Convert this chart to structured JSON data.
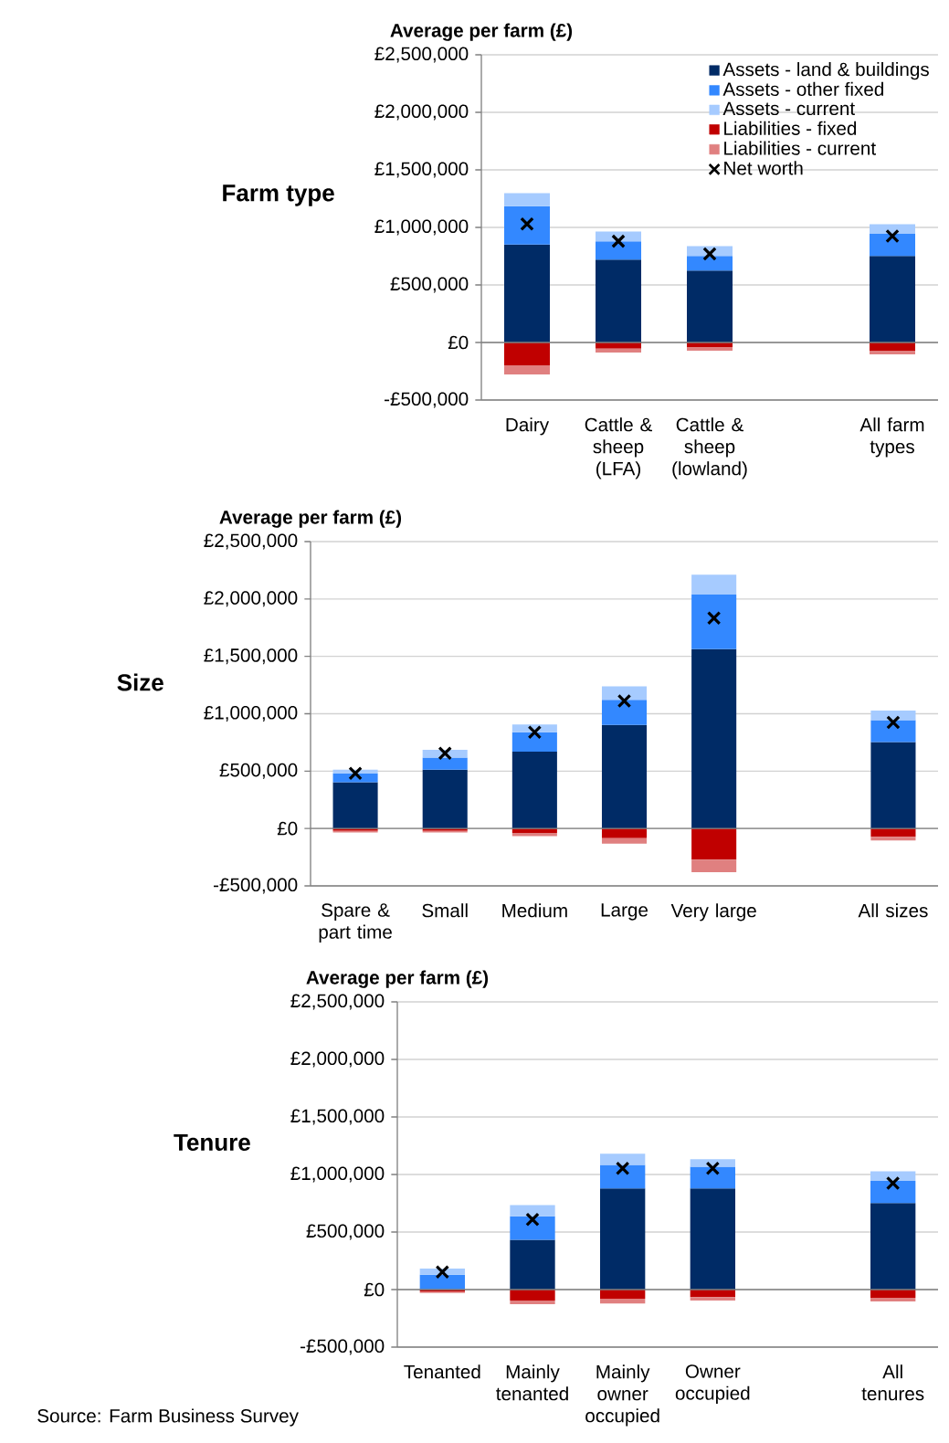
{
  "chart_data": [
    {
      "type": "bar",
      "stacked": true,
      "title": "Farm type",
      "ylabel": "Average per farm (£)",
      "grid": "y",
      "legend": "top right",
      "categories": [
        "Dairy",
        "Cattle & sheep (LFA)",
        "Cattle & sheep (lowland)",
        null,
        "All farm types"
      ],
      "ylim": [
        -500000,
        2500000
      ],
      "yticks": [
        {
          "value": -500000,
          "label": "-£500,000"
        },
        {
          "value": 0,
          "label": "£0"
        },
        {
          "value": 500000,
          "label": "£500,000"
        },
        {
          "value": 1000000,
          "label": "£1,000,000"
        },
        {
          "value": 1500000,
          "label": "£1,500,000"
        },
        {
          "value": 2000000,
          "label": "£2,000,000"
        },
        {
          "value": 2500000,
          "label": "£2,500,000"
        }
      ],
      "series": [
        {
          "name": "Assets - land & buildings",
          "color": "#002b66",
          "values": [
            851000,
            721000,
            625000,
            null,
            753000
          ]
        },
        {
          "name": "Assets - other fixed",
          "color": "#3388ff",
          "values": [
            333000,
            159000,
            128000,
            null,
            191000
          ]
        },
        {
          "name": "Assets - current",
          "color": "#a6cbff",
          "values": [
            114000,
            85000,
            85000,
            null,
            83000
          ]
        },
        {
          "name": "Liabilities - fixed",
          "color": "#c00000",
          "values": [
            -199000,
            -53000,
            -40000,
            null,
            -72000
          ]
        },
        {
          "name": "Liabilities - current",
          "color": "#e08080",
          "values": [
            -78000,
            -35000,
            -32000,
            null,
            -32000
          ]
        },
        {
          "name": "Net worth",
          "type": "scatter",
          "marker": "cross",
          "color": "#000000",
          "values": [
            1030000,
            880000,
            770000,
            null,
            925000
          ]
        }
      ]
    },
    {
      "type": "bar",
      "stacked": true,
      "title": "Size",
      "ylabel": "Average per farm (£)",
      "grid": "y",
      "categories": [
        "Spare & part time",
        "Small",
        "Medium",
        "Large",
        "Very large",
        null,
        "All sizes"
      ],
      "ylim": [
        -500000,
        2500000
      ],
      "yticks": [
        {
          "value": -500000,
          "label": "-£500,000"
        },
        {
          "value": 0,
          "label": "£0"
        },
        {
          "value": 500000,
          "label": "£500,000"
        },
        {
          "value": 1000000,
          "label": "£1,000,000"
        },
        {
          "value": 1500000,
          "label": "£1,500,000"
        },
        {
          "value": 2000000,
          "label": "£2,000,000"
        },
        {
          "value": 2500000,
          "label": "£2,500,000"
        }
      ],
      "series": [
        {
          "color": "#002b66",
          "values": [
            403000,
            513000,
            669000,
            902000,
            1564000,
            null,
            753000
          ]
        },
        {
          "color": "#3388ff",
          "values": [
            78000,
            106000,
            170000,
            220000,
            474000,
            null,
            191000
          ]
        },
        {
          "color": "#a6cbff",
          "values": [
            32000,
            67000,
            67000,
            116000,
            174000,
            null,
            83000
          ]
        },
        {
          "color": "#c00000",
          "values": [
            -21000,
            -21000,
            -39000,
            -85000,
            -272000,
            null,
            -72000
          ]
        },
        {
          "color": "#e08080",
          "values": [
            -14000,
            -14000,
            -28000,
            -46000,
            -109000,
            null,
            -32000
          ]
        },
        {
          "type": "scatter",
          "marker": "cross",
          "color": "#000000",
          "values": [
            480000,
            655000,
            839000,
            1111000,
            1833000,
            null,
            925000
          ]
        }
      ]
    },
    {
      "type": "bar",
      "stacked": true,
      "title": "Tenure",
      "ylabel": "Average per farm (£)",
      "grid": "y",
      "annotations": [
        "Source: Farm Business Survey"
      ],
      "categories": [
        "Tenanted",
        "Mainly tenanted",
        "Mainly owner occupied",
        "Owner occupied",
        null,
        "All tenures"
      ],
      "ylim": [
        -500000,
        2500000
      ],
      "yticks": [
        {
          "value": -500000,
          "label": "-£500,000"
        },
        {
          "value": 0,
          "label": "£0"
        },
        {
          "value": 500000,
          "label": "£500,000"
        },
        {
          "value": 1000000,
          "label": "£1,000,000"
        },
        {
          "value": 1500000,
          "label": "£1,500,000"
        },
        {
          "value": 2000000,
          "label": "£2,000,000"
        },
        {
          "value": 2500000,
          "label": "£2,500,000"
        }
      ],
      "series": [
        {
          "color": "#002b66",
          "values": [
            0,
            433000,
            879000,
            879000,
            null,
            753000
          ]
        },
        {
          "color": "#3388ff",
          "values": [
            130000,
            205000,
            205000,
            189000,
            null,
            191000
          ]
        },
        {
          "color": "#a6cbff",
          "values": [
            53000,
            96000,
            96000,
            65000,
            null,
            83000
          ]
        },
        {
          "color": "#c00000",
          "values": [
            -15000,
            -95000,
            -80000,
            -65000,
            null,
            -72000
          ]
        },
        {
          "color": "#e08080",
          "values": [
            -15000,
            -32000,
            -40000,
            -30000,
            null,
            -32000
          ]
        },
        {
          "type": "scatter",
          "marker": "cross",
          "color": "#000000",
          "values": [
            152000,
            610000,
            1053000,
            1053000,
            null,
            925000
          ]
        }
      ]
    }
  ]
}
